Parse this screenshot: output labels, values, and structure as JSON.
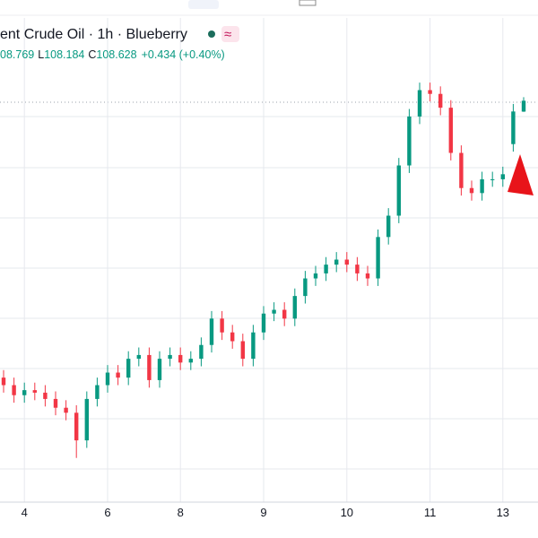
{
  "header": {
    "title": "ent Crude Oil · 1h · Blueberry",
    "high": "08.769",
    "low_label": "L",
    "low": "108.184",
    "close_label": "C",
    "close": "108.628",
    "change": "+0.434 (+0.40%)"
  },
  "chart_data": {
    "type": "candlestick",
    "up_color": "#089981",
    "down_color": "#f23645",
    "ylim": [
      92.64,
      112.64
    ],
    "categories": [
      null,
      null,
      "4",
      null,
      null,
      null,
      null,
      null,
      null,
      null,
      "6",
      null,
      null,
      null,
      null,
      null,
      null,
      "8",
      null,
      null,
      null,
      null,
      null,
      null,
      null,
      "9",
      null,
      null,
      null,
      null,
      null,
      null,
      null,
      "10",
      null,
      null,
      null,
      null,
      null,
      null,
      null,
      "11",
      null,
      null,
      null,
      null,
      null,
      null,
      "13",
      null,
      null
    ],
    "open": [
      97.6,
      97.3,
      96.9,
      97.1,
      97.0,
      96.75,
      96.4,
      96.2,
      95.1,
      96.75,
      97.3,
      97.8,
      97.6,
      98.35,
      98.5,
      97.5,
      98.35,
      98.5,
      98.2,
      98.35,
      98.9,
      99.95,
      99.4,
      99.05,
      98.35,
      99.4,
      100.15,
      100.3,
      99.95,
      100.85,
      101.55,
      101.75,
      102.1,
      102.3,
      102.1,
      101.75,
      101.55,
      103.2,
      104.05,
      106.05,
      108.0,
      109.05,
      108.9,
      108.35,
      106.55,
      105.15,
      104.95,
      105.5,
      105.5,
      106.9,
      108.194
    ],
    "high": [
      97.9,
      97.6,
      97.4,
      97.4,
      97.3,
      97.05,
      96.7,
      96.5,
      97.05,
      97.6,
      98.1,
      98.1,
      98.65,
      98.8,
      98.8,
      98.65,
      98.8,
      98.8,
      98.65,
      99.2,
      100.25,
      100.25,
      99.7,
      99.35,
      99.7,
      100.45,
      100.6,
      100.6,
      101.15,
      101.85,
      102.05,
      102.4,
      102.6,
      102.6,
      102.4,
      102.05,
      103.5,
      104.35,
      106.35,
      108.3,
      109.35,
      109.35,
      109.2,
      108.65,
      106.85,
      105.45,
      105.8,
      105.8,
      106.0,
      108.5,
      108.769
    ],
    "low": [
      97.0,
      96.6,
      96.6,
      96.7,
      96.45,
      96.1,
      95.9,
      94.4,
      94.8,
      96.45,
      97.0,
      97.3,
      97.3,
      98.05,
      97.2,
      97.2,
      98.05,
      97.9,
      97.9,
      98.05,
      98.6,
      99.1,
      98.75,
      98.05,
      98.05,
      99.1,
      99.85,
      99.65,
      99.65,
      100.55,
      101.25,
      101.45,
      101.8,
      101.8,
      101.45,
      101.25,
      101.25,
      102.9,
      103.75,
      105.75,
      107.7,
      108.6,
      108.05,
      106.25,
      104.85,
      104.65,
      104.65,
      105.2,
      105.2,
      106.6,
      108.184
    ],
    "close": [
      97.3,
      96.9,
      97.1,
      97.0,
      96.75,
      96.4,
      96.2,
      95.1,
      96.75,
      97.3,
      97.8,
      97.6,
      98.35,
      98.5,
      97.5,
      98.35,
      98.5,
      98.2,
      98.35,
      98.9,
      99.95,
      99.4,
      99.05,
      98.35,
      99.4,
      100.15,
      100.3,
      99.95,
      100.85,
      101.55,
      101.75,
      102.1,
      102.3,
      102.1,
      101.75,
      101.55,
      103.2,
      104.05,
      106.05,
      108.0,
      109.05,
      108.9,
      108.35,
      106.55,
      105.15,
      104.95,
      105.5,
      105.5,
      105.7,
      108.2,
      108.628
    ]
  }
}
